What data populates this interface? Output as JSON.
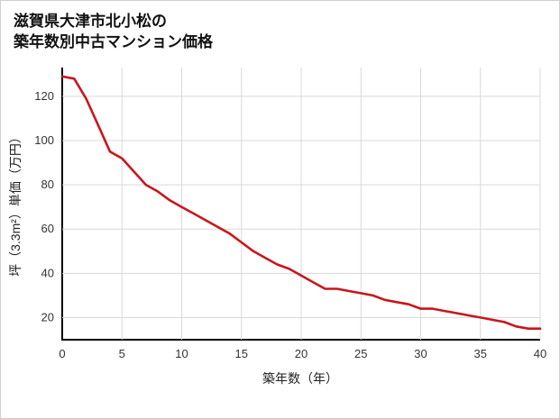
{
  "title": {
    "line1": "滋賀県大津市北小松の",
    "line2": "築年数別中古マンション価格"
  },
  "colors": {
    "line": "#c9161d",
    "grid": "#d9d9d9",
    "axis": "#000000",
    "text": "#333333"
  },
  "chart_data": {
    "type": "line",
    "title": "滋賀県大津市北小松の築年数別中古マンション価格",
    "xlabel": "築年数（年）",
    "ylabel": "坪（3.3m²）単価（万円）",
    "series_name": "坪（3.3m²）単価",
    "x": [
      0,
      1,
      2,
      3,
      4,
      5,
      6,
      7,
      8,
      9,
      10,
      11,
      12,
      13,
      14,
      15,
      16,
      17,
      18,
      19,
      20,
      21,
      22,
      23,
      24,
      25,
      26,
      27,
      28,
      29,
      30,
      31,
      32,
      33,
      34,
      35,
      36,
      37,
      38,
      39,
      40
    ],
    "values": [
      129,
      128,
      119,
      107,
      95,
      92,
      86,
      80,
      77,
      73,
      70,
      67,
      64,
      61,
      58,
      54,
      50,
      47,
      44,
      42,
      39,
      36,
      33,
      33,
      32,
      31,
      30,
      28,
      27,
      26,
      24,
      24,
      23,
      22,
      21,
      20,
      19,
      18,
      16,
      15,
      15
    ],
    "xlim": [
      0,
      40
    ],
    "ylim": [
      10,
      133
    ],
    "xticks": [
      0,
      5,
      10,
      15,
      20,
      25,
      30,
      35,
      40
    ],
    "yticks": [
      20,
      40,
      60,
      80,
      100,
      120
    ],
    "grid": true,
    "legend": false
  }
}
